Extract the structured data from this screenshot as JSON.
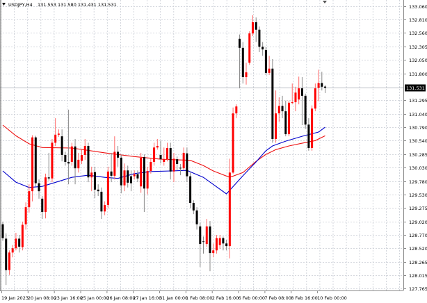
{
  "header": {
    "menu_icon": "triangle-down-icon",
    "symbol": "USDJPY,H4",
    "ohlc": "131.553 131.580 131.431 131.531"
  },
  "chart_data": {
    "type": "candlestick",
    "title": "USDJPY,H4",
    "current_price": "131.531",
    "colors": {
      "bull": "#ff0000",
      "bear": "#000000",
      "ma_fast": "#0000cc",
      "ma_slow": "#ee1111",
      "grid": "#c8ccd4"
    },
    "ylim": [
      127.765,
      133.06
    ],
    "y_ticks": [
      "133.060",
      "132.810",
      "132.560",
      "132.305",
      "132.050",
      "131.800",
      "131.531",
      "131.295",
      "131.040",
      "130.790",
      "130.540",
      "130.285",
      "130.030",
      "129.780",
      "129.530",
      "129.275",
      "129.020",
      "128.770",
      "128.520",
      "128.265",
      "128.015",
      "127.765"
    ],
    "x_ticks": [
      "19 Jan 2023",
      "20 Jan 08:00",
      "23 Jan 16:00",
      "25 Jan 00:00",
      "26 Jan 08:00",
      "27 Jan 16:00",
      "31 Jan 00:00",
      "1 Feb 08:00",
      "2 Feb 16:00",
      "6 Feb 00:00",
      "7 Feb 08:00",
      "8 Feb 16:00",
      "10 Feb 00:00"
    ],
    "x_tick_every_bars": 8,
    "candles": [
      [
        128.97,
        129.02,
        128.66,
        128.71
      ],
      [
        128.7,
        128.8,
        127.83,
        128.11
      ],
      [
        128.11,
        128.48,
        128.02,
        128.44
      ],
      [
        128.44,
        128.58,
        128.35,
        128.52
      ],
      [
        128.52,
        128.81,
        128.48,
        128.7
      ],
      [
        128.7,
        128.77,
        128.44,
        128.55
      ],
      [
        128.54,
        129.02,
        128.48,
        128.96
      ],
      [
        128.97,
        129.38,
        128.87,
        129.29
      ],
      [
        129.29,
        129.72,
        129.19,
        129.59
      ],
      [
        129.59,
        130.64,
        129.4,
        130.6
      ],
      [
        130.6,
        130.63,
        129.68,
        129.74
      ],
      [
        129.74,
        129.81,
        129.45,
        129.59
      ],
      [
        129.45,
        129.5,
        129.07,
        129.2
      ],
      [
        129.2,
        129.92,
        129.08,
        129.85
      ],
      [
        129.85,
        130.31,
        129.79,
        129.83
      ],
      [
        129.83,
        130.57,
        129.76,
        130.5
      ],
      [
        130.5,
        130.96,
        130.44,
        130.65
      ],
      [
        130.65,
        130.75,
        130.61,
        130.67
      ],
      [
        130.62,
        130.75,
        130.15,
        130.27
      ],
      [
        130.27,
        130.33,
        130.07,
        130.14
      ],
      [
        130.14,
        131.12,
        129.72,
        130.11
      ],
      [
        130.14,
        130.5,
        130.07,
        130.43
      ],
      [
        130.43,
        130.57,
        129.72,
        130.02
      ],
      [
        130.02,
        130.31,
        129.94,
        130.18
      ],
      [
        130.16,
        130.37,
        130.1,
        130.27
      ],
      [
        130.27,
        130.57,
        130.18,
        130.44
      ],
      [
        130.44,
        130.5,
        129.76,
        129.85
      ],
      [
        129.85,
        130.05,
        129.59,
        129.94
      ],
      [
        129.95,
        130.05,
        129.46,
        129.62
      ],
      [
        129.62,
        129.72,
        129.5,
        129.59
      ],
      [
        129.58,
        129.66,
        129.07,
        129.21
      ],
      [
        129.21,
        129.4,
        129.14,
        129.33
      ],
      [
        129.33,
        130.05,
        129.27,
        129.96
      ],
      [
        129.96,
        130.31,
        129.76,
        129.88
      ],
      [
        129.88,
        130.62,
        129.81,
        130.33
      ],
      [
        130.33,
        130.44,
        130.05,
        130.22
      ],
      [
        130.22,
        130.28,
        129.55,
        129.7
      ],
      [
        129.7,
        130.11,
        129.59,
        129.98
      ],
      [
        129.98,
        130.07,
        129.66,
        129.75
      ],
      [
        129.87,
        129.98,
        129.59,
        129.74
      ],
      [
        129.87,
        129.98,
        129.81,
        129.91
      ],
      [
        129.91,
        129.98,
        129.76,
        129.83
      ],
      [
        129.68,
        130.31,
        129.56,
        130.22
      ],
      [
        130.23,
        130.28,
        129.2,
        129.64
      ],
      [
        129.64,
        130.05,
        129.53,
        129.97
      ],
      [
        129.97,
        130.2,
        129.92,
        130.14
      ],
      [
        130.14,
        130.5,
        130.07,
        130.41
      ],
      [
        130.41,
        130.57,
        130.37,
        130.44
      ],
      [
        130.27,
        130.54,
        130.11,
        130.19
      ],
      [
        130.14,
        130.41,
        130.07,
        130.19
      ],
      [
        130.19,
        130.5,
        130.15,
        130.4
      ],
      [
        130.4,
        130.5,
        129.81,
        129.96
      ],
      [
        129.96,
        130.31,
        129.76,
        130.2
      ],
      [
        130.19,
        130.24,
        129.98,
        130.1
      ],
      [
        130.03,
        130.1,
        129.89,
        130.02
      ],
      [
        130.02,
        130.41,
        129.98,
        130.31
      ],
      [
        130.3,
        130.41,
        129.76,
        129.87
      ],
      [
        129.87,
        129.94,
        129.27,
        129.37
      ],
      [
        129.37,
        129.42,
        129.16,
        129.23
      ],
      [
        129.23,
        129.29,
        128.87,
        128.97
      ],
      [
        128.93,
        129.0,
        128.17,
        128.6
      ],
      [
        128.65,
        128.74,
        128.42,
        128.64
      ],
      [
        128.6,
        129.07,
        128.55,
        128.93
      ],
      [
        128.93,
        129.03,
        128.09,
        128.43
      ],
      [
        128.43,
        128.61,
        128.35,
        128.48
      ],
      [
        128.48,
        128.77,
        128.42,
        128.71
      ],
      [
        128.58,
        128.77,
        128.51,
        128.71
      ],
      [
        128.71,
        128.74,
        128.48,
        128.61
      ],
      [
        128.61,
        128.68,
        128.48,
        128.56
      ],
      [
        128.56,
        130.2,
        128.33,
        129.94
      ],
      [
        129.94,
        131.16,
        129.92,
        131.05
      ],
      [
        131.05,
        131.22,
        130.96,
        131.18
      ],
      [
        132.45,
        132.53,
        131.52,
        132.28
      ],
      [
        132.28,
        132.39,
        131.61,
        131.73
      ],
      [
        131.73,
        132.0,
        131.59,
        131.82
      ],
      [
        132.0,
        132.59,
        131.96,
        132.55
      ],
      [
        132.55,
        132.89,
        132.5,
        132.76
      ],
      [
        132.76,
        132.85,
        132.39,
        132.62
      ],
      [
        132.62,
        132.68,
        132.2,
        132.3
      ],
      [
        132.3,
        132.39,
        132.13,
        132.25
      ],
      [
        132.24,
        132.29,
        131.77,
        131.81
      ],
      [
        131.81,
        132.13,
        131.77,
        131.89
      ],
      [
        131.89,
        132.07,
        130.5,
        130.57
      ],
      [
        130.57,
        131.48,
        130.5,
        131.05
      ],
      [
        131.05,
        131.35,
        130.89,
        131.19
      ],
      [
        131.19,
        131.38,
        130.96,
        131.09
      ],
      [
        131.09,
        131.29,
        130.62,
        130.66
      ],
      [
        130.66,
        131.29,
        130.62,
        131.25
      ],
      [
        131.25,
        131.61,
        131.22,
        131.26
      ],
      [
        131.26,
        131.55,
        131.09,
        131.44
      ],
      [
        131.31,
        131.74,
        131.22,
        131.52
      ],
      [
        131.52,
        131.73,
        130.83,
        131.38
      ],
      [
        131.38,
        131.42,
        130.76,
        130.84
      ],
      [
        130.84,
        130.96,
        130.35,
        130.4
      ],
      [
        130.4,
        131.2,
        130.35,
        131.14
      ],
      [
        131.14,
        131.61,
        131.09,
        131.52
      ],
      [
        131.53,
        131.87,
        131.28,
        131.62
      ],
      [
        131.62,
        131.83,
        131.48,
        131.55
      ],
      [
        131.553,
        131.58,
        131.431,
        131.531
      ]
    ],
    "ma_fast": [
      [
        0,
        129.97
      ],
      [
        4,
        129.76
      ],
      [
        8,
        129.66
      ],
      [
        12,
        129.68
      ],
      [
        21,
        129.85
      ],
      [
        26,
        129.89
      ],
      [
        31,
        129.85
      ],
      [
        35,
        129.83
      ],
      [
        40,
        129.92
      ],
      [
        45,
        129.96
      ],
      [
        51,
        129.97
      ],
      [
        56,
        129.98
      ],
      [
        61,
        129.85
      ],
      [
        68,
        129.54
      ],
      [
        73,
        129.88
      ],
      [
        77,
        130.14
      ],
      [
        80,
        130.35
      ],
      [
        82,
        130.44
      ],
      [
        86,
        130.53
      ],
      [
        91,
        130.62
      ],
      [
        96,
        130.7
      ],
      [
        98,
        130.79
      ]
    ],
    "ma_slow": [
      [
        0,
        130.83
      ],
      [
        4,
        130.63
      ],
      [
        8,
        130.48
      ],
      [
        12,
        130.41
      ],
      [
        21,
        130.4
      ],
      [
        31,
        130.31
      ],
      [
        40,
        130.24
      ],
      [
        48,
        130.19
      ],
      [
        57,
        130.17
      ],
      [
        61,
        130.07
      ],
      [
        64,
        129.97
      ],
      [
        69,
        129.85
      ],
      [
        73,
        129.94
      ],
      [
        77,
        130.15
      ],
      [
        80,
        130.28
      ],
      [
        83,
        130.37
      ],
      [
        87,
        130.44
      ],
      [
        91,
        130.49
      ],
      [
        95,
        130.54
      ],
      [
        98,
        130.63
      ]
    ]
  }
}
